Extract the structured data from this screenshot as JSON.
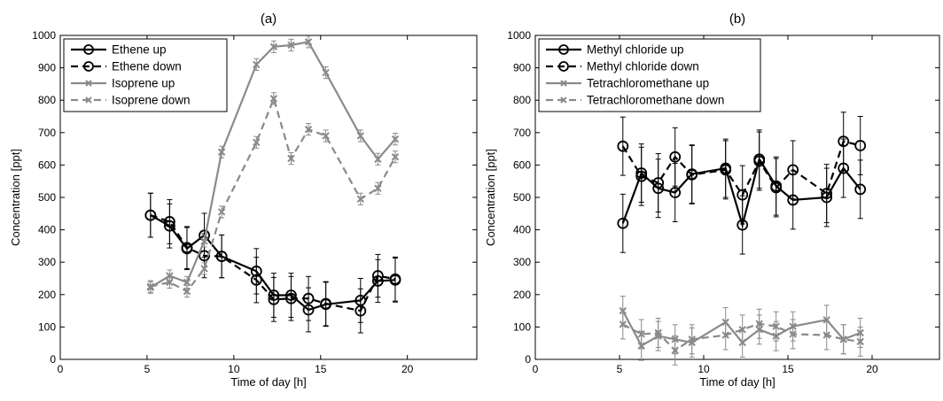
{
  "chart_data": [
    {
      "type": "line",
      "title": "(a)",
      "xlabel": "Time of day [h]",
      "ylabel": "Concentration [ppt]",
      "xlim": [
        0,
        24
      ],
      "ylim": [
        0,
        1000
      ],
      "xticks": [
        0,
        5,
        10,
        15,
        20
      ],
      "yticks": [
        0,
        100,
        200,
        300,
        400,
        500,
        600,
        700,
        800,
        900,
        1000
      ],
      "grid": false,
      "legend_position": "top-left",
      "series": [
        {
          "name": "Ethene up",
          "color": "#000000",
          "dashed": false,
          "marker": "circle",
          "x": [
            5.2,
            6.3,
            7.3,
            8.3,
            9.3,
            11.3,
            12.3,
            13.3,
            14.3,
            15.3,
            17.3,
            18.3,
            19.3
          ],
          "y": [
            445,
            412,
            342,
            383,
            318,
            272,
            198,
            198,
            153,
            170,
            182,
            242,
            245
          ],
          "err": [
            68,
            68,
            65,
            68,
            66,
            70,
            68,
            68,
            68,
            68,
            68,
            66,
            68
          ]
        },
        {
          "name": "Ethene down",
          "color": "#000000",
          "dashed": true,
          "marker": "circle",
          "x": [
            5.2,
            6.3,
            7.3,
            8.3,
            9.3,
            11.3,
            12.3,
            13.3,
            14.3,
            15.3,
            17.3,
            18.3,
            19.3
          ],
          "y": [
            445,
            425,
            345,
            320,
            318,
            245,
            185,
            188,
            188,
            172,
            150,
            258,
            248
          ],
          "err": [
            68,
            68,
            65,
            68,
            66,
            70,
            68,
            68,
            68,
            68,
            68,
            66,
            68
          ]
        },
        {
          "name": "Isoprene up",
          "color": "#8a8a8a",
          "dashed": false,
          "marker": "x",
          "x": [
            5.2,
            6.3,
            7.3,
            8.3,
            9.3,
            11.3,
            12.3,
            13.3,
            14.3,
            15.3,
            17.3,
            18.3,
            19.3
          ],
          "y": [
            222,
            258,
            238,
            365,
            640,
            910,
            965,
            970,
            980,
            885,
            690,
            618,
            680
          ],
          "err": [
            18,
            18,
            18,
            18,
            18,
            18,
            18,
            18,
            18,
            18,
            18,
            18,
            18
          ]
        },
        {
          "name": "Isoprene down",
          "color": "#8a8a8a",
          "dashed": true,
          "marker": "x",
          "x": [
            5.2,
            6.3,
            7.3,
            8.3,
            9.3,
            11.3,
            12.3,
            13.3,
            14.3,
            15.3,
            17.3,
            18.3,
            19.3
          ],
          "y": [
            225,
            238,
            210,
            280,
            455,
            670,
            805,
            620,
            710,
            690,
            495,
            528,
            625
          ],
          "err": [
            18,
            18,
            18,
            18,
            18,
            18,
            18,
            18,
            18,
            18,
            18,
            18,
            18
          ]
        }
      ]
    },
    {
      "type": "line",
      "title": "(b)",
      "xlabel": "Time of day [h]",
      "ylabel": "Concentration [ppt]",
      "xlim": [
        0,
        24
      ],
      "ylim": [
        0,
        1000
      ],
      "xticks": [
        0,
        5,
        10,
        15,
        20
      ],
      "yticks": [
        0,
        100,
        200,
        300,
        400,
        500,
        600,
        700,
        800,
        900,
        1000
      ],
      "grid": false,
      "legend_position": "top-left",
      "series": [
        {
          "name": "Methyl chloride up",
          "color": "#000000",
          "dashed": false,
          "marker": "circle",
          "x": [
            5.2,
            6.3,
            7.3,
            8.3,
            9.3,
            11.3,
            12.3,
            13.3,
            14.3,
            15.3,
            17.3,
            18.3,
            19.3
          ],
          "y": [
            420,
            575,
            528,
            515,
            572,
            590,
            415,
            618,
            535,
            492,
            500,
            590,
            525
          ],
          "err": [
            90,
            90,
            90,
            90,
            90,
            90,
            90,
            90,
            90,
            90,
            90,
            90,
            90
          ]
        },
        {
          "name": "Methyl chloride down",
          "color": "#000000",
          "dashed": true,
          "marker": "circle",
          "x": [
            5.2,
            6.3,
            7.3,
            8.3,
            9.3,
            11.3,
            12.3,
            13.3,
            14.3,
            15.3,
            17.3,
            18.3,
            19.3
          ],
          "y": [
            658,
            565,
            545,
            625,
            570,
            585,
            508,
            612,
            530,
            585,
            512,
            673,
            660
          ],
          "err": [
            90,
            90,
            90,
            90,
            90,
            90,
            90,
            90,
            90,
            90,
            90,
            90,
            90
          ]
        },
        {
          "name": "Tetrachloromethane up",
          "color": "#8a8a8a",
          "dashed": false,
          "marker": "x",
          "x": [
            5.2,
            6.3,
            7.3,
            8.3,
            9.3,
            11.3,
            12.3,
            13.3,
            14.3,
            15.3,
            17.3,
            18.3,
            19.3
          ],
          "y": [
            150,
            42,
            72,
            62,
            52,
            115,
            52,
            92,
            72,
            102,
            122,
            62,
            82
          ],
          "err": [
            45,
            45,
            45,
            45,
            45,
            45,
            45,
            45,
            45,
            45,
            45,
            45,
            45
          ]
        },
        {
          "name": "Tetrachloromethane down",
          "color": "#8a8a8a",
          "dashed": true,
          "marker": "x",
          "x": [
            5.2,
            6.3,
            7.3,
            8.3,
            9.3,
            11.3,
            12.3,
            13.3,
            14.3,
            15.3,
            17.3,
            18.3,
            19.3
          ],
          "y": [
            108,
            78,
            82,
            28,
            62,
            75,
            92,
            110,
            102,
            78,
            75,
            62,
            55
          ],
          "err": [
            45,
            45,
            45,
            45,
            45,
            45,
            45,
            45,
            45,
            45,
            45,
            45,
            45
          ]
        }
      ]
    }
  ]
}
